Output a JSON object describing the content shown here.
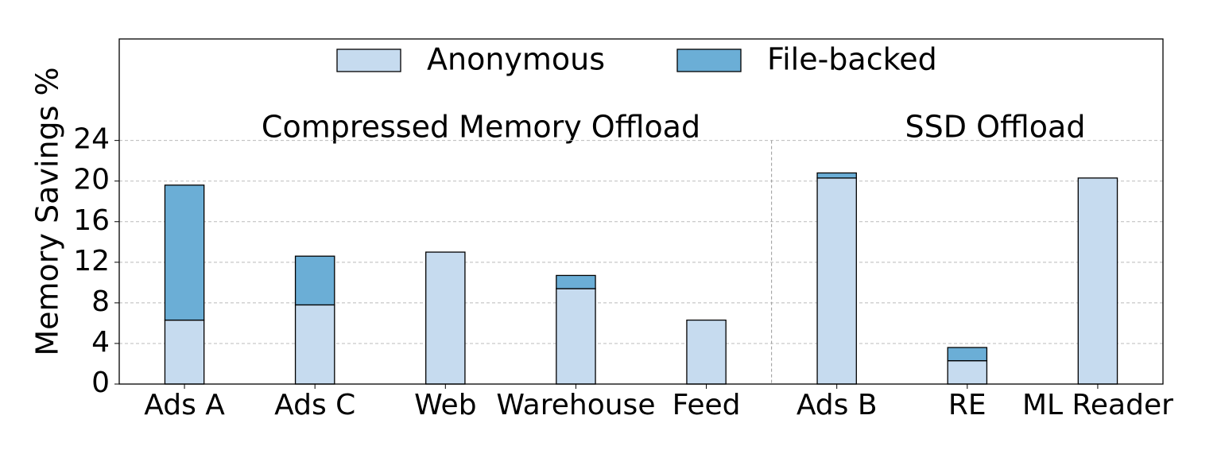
{
  "chart_data": {
    "type": "bar",
    "stacked": true,
    "y_label": "Memory Savings %",
    "annotations": [
      "Compressed Memory Offload",
      "SSD Offload"
    ],
    "categories": [
      "Ads A",
      "Ads C",
      "Web",
      "Warehouse",
      "Feed",
      "Ads B",
      "RE",
      "ML Reader"
    ],
    "series": [
      {
        "name": "Anonymous",
        "color": "#c6dbef",
        "values": [
          6.3,
          7.8,
          13.0,
          9.4,
          6.3,
          20.3,
          2.3,
          20.3
        ]
      },
      {
        "name": "File-backed",
        "color": "#6baed6",
        "values": [
          13.3,
          4.8,
          0,
          1.3,
          0,
          0.5,
          1.3,
          0
        ]
      }
    ],
    "ylim": [
      0,
      34
    ],
    "yticks": [
      0,
      4,
      8,
      12,
      16,
      20,
      24
    ],
    "grid": true,
    "legend": "top"
  }
}
